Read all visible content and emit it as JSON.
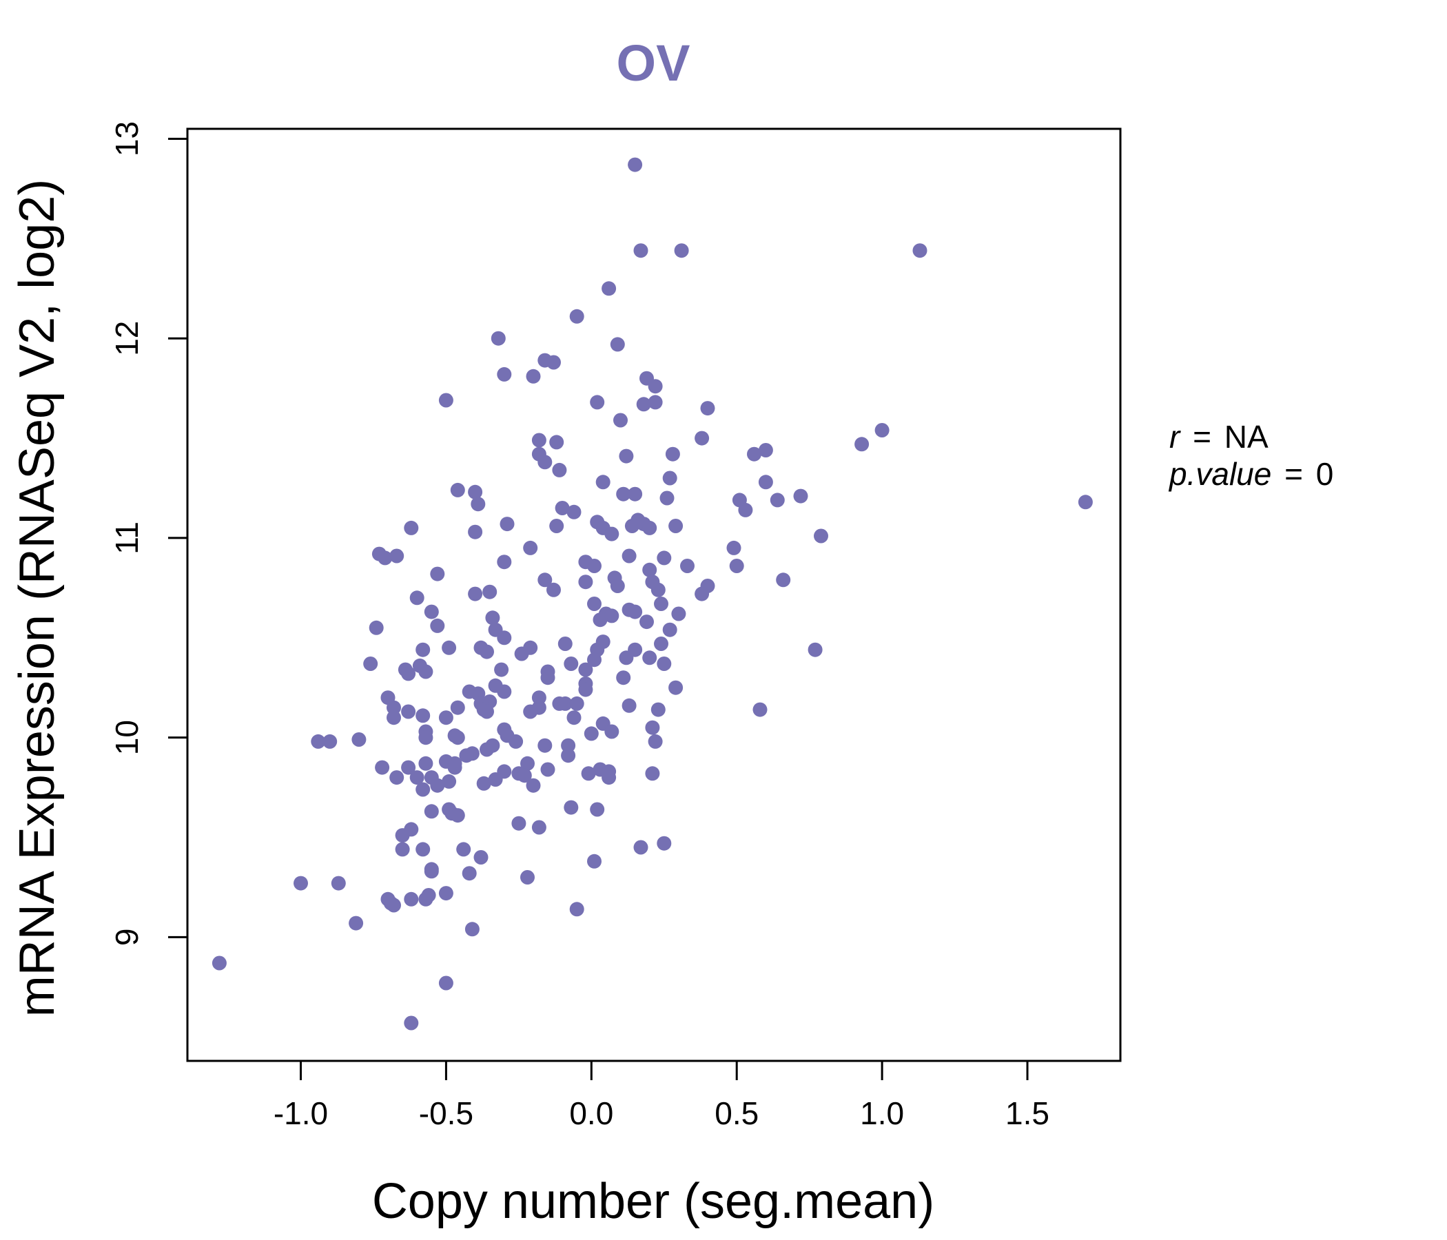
{
  "chart_data": {
    "type": "scatter",
    "title": "OV",
    "xlabel": "Copy number (seg.mean)",
    "ylabel": "mRNA Expression (RNASeq V2, log2)",
    "xlim": [
      -1.39,
      1.82
    ],
    "ylim": [
      8.38,
      13.05
    ],
    "x_ticks": [
      -1.0,
      -0.5,
      0.0,
      0.5,
      1.0,
      1.5
    ],
    "x_tick_labels": [
      "-1.0",
      "-0.5",
      "0.0",
      "0.5",
      "1.0",
      "1.5"
    ],
    "y_ticks": [
      9,
      10,
      11,
      12,
      13
    ],
    "y_tick_labels": [
      "9",
      "10",
      "11",
      "12",
      "13"
    ],
    "grid": false,
    "point_color": "#7570b3",
    "stats": {
      "r_label": "r",
      "r_value": "NA",
      "p_label": "p.value",
      "p_value": "0",
      "equals": "="
    },
    "points": [
      {
        "x": 0.15,
        "y": 12.87
      },
      {
        "x": 0.17,
        "y": 12.44
      },
      {
        "x": 0.31,
        "y": 12.44
      },
      {
        "x": 1.13,
        "y": 12.44
      },
      {
        "x": 0.06,
        "y": 12.25
      },
      {
        "x": -0.05,
        "y": 12.11
      },
      {
        "x": -0.32,
        "y": 12.0
      },
      {
        "x": 0.09,
        "y": 11.97
      },
      {
        "x": -0.16,
        "y": 11.89
      },
      {
        "x": -0.13,
        "y": 11.88
      },
      {
        "x": -0.3,
        "y": 11.82
      },
      {
        "x": -0.2,
        "y": 11.81
      },
      {
        "x": 0.19,
        "y": 11.8
      },
      {
        "x": 0.22,
        "y": 11.76
      },
      {
        "x": -0.5,
        "y": 11.69
      },
      {
        "x": 0.02,
        "y": 11.68
      },
      {
        "x": 0.18,
        "y": 11.67
      },
      {
        "x": 0.22,
        "y": 11.68
      },
      {
        "x": 0.4,
        "y": 11.65
      },
      {
        "x": 0.1,
        "y": 11.59
      },
      {
        "x": 1.0,
        "y": 11.54
      },
      {
        "x": 0.38,
        "y": 11.5
      },
      {
        "x": -0.18,
        "y": 11.49
      },
      {
        "x": -0.12,
        "y": 11.48
      },
      {
        "x": 0.93,
        "y": 11.47
      },
      {
        "x": 0.6,
        "y": 11.44
      },
      {
        "x": 0.56,
        "y": 11.42
      },
      {
        "x": -0.18,
        "y": 11.42
      },
      {
        "x": 0.12,
        "y": 11.41
      },
      {
        "x": 0.28,
        "y": 11.42
      },
      {
        "x": -0.16,
        "y": 11.38
      },
      {
        "x": -0.11,
        "y": 11.34
      },
      {
        "x": 0.27,
        "y": 11.3
      },
      {
        "x": 0.04,
        "y": 11.28
      },
      {
        "x": 0.6,
        "y": 11.28
      },
      {
        "x": -0.46,
        "y": 11.24
      },
      {
        "x": -0.4,
        "y": 11.23
      },
      {
        "x": 0.11,
        "y": 11.22
      },
      {
        "x": 0.15,
        "y": 11.22
      },
      {
        "x": 0.26,
        "y": 11.2
      },
      {
        "x": 0.72,
        "y": 11.21
      },
      {
        "x": 0.64,
        "y": 11.19
      },
      {
        "x": 0.51,
        "y": 11.19
      },
      {
        "x": 1.7,
        "y": 11.18
      },
      {
        "x": -0.39,
        "y": 11.17
      },
      {
        "x": -0.1,
        "y": 11.15
      },
      {
        "x": -0.06,
        "y": 11.13
      },
      {
        "x": 0.53,
        "y": 11.14
      },
      {
        "x": 0.02,
        "y": 11.08
      },
      {
        "x": 0.16,
        "y": 11.09
      },
      {
        "x": -0.29,
        "y": 11.07
      },
      {
        "x": -0.12,
        "y": 11.06
      },
      {
        "x": 0.14,
        "y": 11.06
      },
      {
        "x": 0.18,
        "y": 11.07
      },
      {
        "x": 0.2,
        "y": 11.05
      },
      {
        "x": 0.29,
        "y": 11.06
      },
      {
        "x": -0.62,
        "y": 11.05
      },
      {
        "x": 0.04,
        "y": 11.05
      },
      {
        "x": 0.07,
        "y": 11.02
      },
      {
        "x": -0.4,
        "y": 11.03
      },
      {
        "x": 0.79,
        "y": 11.01
      },
      {
        "x": -0.21,
        "y": 10.95
      },
      {
        "x": 0.49,
        "y": 10.95
      },
      {
        "x": -0.73,
        "y": 10.92
      },
      {
        "x": -0.67,
        "y": 10.91
      },
      {
        "x": -0.71,
        "y": 10.9
      },
      {
        "x": 0.13,
        "y": 10.91
      },
      {
        "x": 0.25,
        "y": 10.9
      },
      {
        "x": -0.3,
        "y": 10.88
      },
      {
        "x": -0.02,
        "y": 10.88
      },
      {
        "x": 0.01,
        "y": 10.86
      },
      {
        "x": 0.2,
        "y": 10.84
      },
      {
        "x": 0.33,
        "y": 10.86
      },
      {
        "x": 0.5,
        "y": 10.86
      },
      {
        "x": -0.53,
        "y": 10.82
      },
      {
        "x": 0.08,
        "y": 10.8
      },
      {
        "x": -0.16,
        "y": 10.79
      },
      {
        "x": -0.02,
        "y": 10.78
      },
      {
        "x": 0.09,
        "y": 10.76
      },
      {
        "x": 0.21,
        "y": 10.78
      },
      {
        "x": 0.4,
        "y": 10.76
      },
      {
        "x": 0.66,
        "y": 10.79
      },
      {
        "x": -0.13,
        "y": 10.74
      },
      {
        "x": -0.35,
        "y": 10.73
      },
      {
        "x": -0.4,
        "y": 10.72
      },
      {
        "x": 0.23,
        "y": 10.74
      },
      {
        "x": 0.38,
        "y": 10.72
      },
      {
        "x": -0.6,
        "y": 10.7
      },
      {
        "x": 0.01,
        "y": 10.67
      },
      {
        "x": 0.24,
        "y": 10.67
      },
      {
        "x": 0.13,
        "y": 10.64
      },
      {
        "x": 0.15,
        "y": 10.63
      },
      {
        "x": -0.55,
        "y": 10.63
      },
      {
        "x": 0.3,
        "y": 10.62
      },
      {
        "x": 0.05,
        "y": 10.62
      },
      {
        "x": 0.07,
        "y": 10.61
      },
      {
        "x": -0.34,
        "y": 10.6
      },
      {
        "x": 0.03,
        "y": 10.59
      },
      {
        "x": 0.19,
        "y": 10.58
      },
      {
        "x": -0.53,
        "y": 10.56
      },
      {
        "x": -0.74,
        "y": 10.55
      },
      {
        "x": -0.33,
        "y": 10.54
      },
      {
        "x": 0.27,
        "y": 10.54
      },
      {
        "x": -0.3,
        "y": 10.5
      },
      {
        "x": 0.04,
        "y": 10.48
      },
      {
        "x": -0.09,
        "y": 10.47
      },
      {
        "x": 0.24,
        "y": 10.47
      },
      {
        "x": -0.49,
        "y": 10.45
      },
      {
        "x": -0.38,
        "y": 10.45
      },
      {
        "x": -0.21,
        "y": 10.45
      },
      {
        "x": 0.02,
        "y": 10.44
      },
      {
        "x": 0.15,
        "y": 10.44
      },
      {
        "x": 0.77,
        "y": 10.44
      },
      {
        "x": -0.58,
        "y": 10.44
      },
      {
        "x": -0.36,
        "y": 10.43
      },
      {
        "x": -0.24,
        "y": 10.42
      },
      {
        "x": 0.12,
        "y": 10.4
      },
      {
        "x": 0.2,
        "y": 10.4
      },
      {
        "x": 0.01,
        "y": 10.39
      },
      {
        "x": -0.76,
        "y": 10.37
      },
      {
        "x": -0.07,
        "y": 10.37
      },
      {
        "x": 0.25,
        "y": 10.37
      },
      {
        "x": -0.59,
        "y": 10.36
      },
      {
        "x": -0.64,
        "y": 10.34
      },
      {
        "x": -0.31,
        "y": 10.34
      },
      {
        "x": -0.02,
        "y": 10.34
      },
      {
        "x": -0.57,
        "y": 10.33
      },
      {
        "x": -0.15,
        "y": 10.33
      },
      {
        "x": -0.63,
        "y": 10.32
      },
      {
        "x": -0.15,
        "y": 10.3
      },
      {
        "x": 0.11,
        "y": 10.3
      },
      {
        "x": -0.02,
        "y": 10.27
      },
      {
        "x": -0.33,
        "y": 10.26
      },
      {
        "x": 0.29,
        "y": 10.25
      },
      {
        "x": -0.42,
        "y": 10.23
      },
      {
        "x": -0.3,
        "y": 10.23
      },
      {
        "x": -0.02,
        "y": 10.24
      },
      {
        "x": -0.39,
        "y": 10.22
      },
      {
        "x": -0.7,
        "y": 10.2
      },
      {
        "x": -0.18,
        "y": 10.2
      },
      {
        "x": -0.35,
        "y": 10.18
      },
      {
        "x": -0.38,
        "y": 10.17
      },
      {
        "x": -0.11,
        "y": 10.17
      },
      {
        "x": -0.09,
        "y": 10.17
      },
      {
        "x": -0.05,
        "y": 10.17
      },
      {
        "x": 0.13,
        "y": 10.16
      },
      {
        "x": -0.68,
        "y": 10.15
      },
      {
        "x": -0.46,
        "y": 10.15
      },
      {
        "x": -0.37,
        "y": 10.14
      },
      {
        "x": -0.18,
        "y": 10.15
      },
      {
        "x": -0.36,
        "y": 10.13
      },
      {
        "x": -0.63,
        "y": 10.13
      },
      {
        "x": -0.21,
        "y": 10.13
      },
      {
        "x": 0.23,
        "y": 10.14
      },
      {
        "x": 0.58,
        "y": 10.14
      },
      {
        "x": -0.58,
        "y": 10.11
      },
      {
        "x": -0.68,
        "y": 10.1
      },
      {
        "x": -0.5,
        "y": 10.1
      },
      {
        "x": -0.06,
        "y": 10.1
      },
      {
        "x": 0.04,
        "y": 10.07
      },
      {
        "x": 0.21,
        "y": 10.05
      },
      {
        "x": -0.3,
        "y": 10.04
      },
      {
        "x": 0.07,
        "y": 10.03
      },
      {
        "x": -0.57,
        "y": 10.03
      },
      {
        "x": 0.0,
        "y": 10.02
      },
      {
        "x": -0.47,
        "y": 10.01
      },
      {
        "x": -0.29,
        "y": 10.01
      },
      {
        "x": -0.57,
        "y": 10.0
      },
      {
        "x": -0.46,
        "y": 10.0
      },
      {
        "x": -0.8,
        "y": 9.99
      },
      {
        "x": -0.9,
        "y": 9.98
      },
      {
        "x": -0.94,
        "y": 9.98
      },
      {
        "x": -0.26,
        "y": 9.98
      },
      {
        "x": 0.22,
        "y": 9.98
      },
      {
        "x": -0.34,
        "y": 9.96
      },
      {
        "x": -0.16,
        "y": 9.96
      },
      {
        "x": -0.08,
        "y": 9.96
      },
      {
        "x": -0.36,
        "y": 9.94
      },
      {
        "x": -0.41,
        "y": 9.92
      },
      {
        "x": -0.43,
        "y": 9.91
      },
      {
        "x": -0.08,
        "y": 9.91
      },
      {
        "x": -0.5,
        "y": 9.88
      },
      {
        "x": -0.57,
        "y": 9.87
      },
      {
        "x": -0.22,
        "y": 9.87
      },
      {
        "x": -0.47,
        "y": 9.87
      },
      {
        "x": -0.72,
        "y": 9.85
      },
      {
        "x": -0.63,
        "y": 9.85
      },
      {
        "x": -0.47,
        "y": 9.85
      },
      {
        "x": -0.15,
        "y": 9.84
      },
      {
        "x": 0.03,
        "y": 9.84
      },
      {
        "x": -0.3,
        "y": 9.83
      },
      {
        "x": 0.06,
        "y": 9.83
      },
      {
        "x": -0.25,
        "y": 9.82
      },
      {
        "x": -0.01,
        "y": 9.82
      },
      {
        "x": 0.21,
        "y": 9.82
      },
      {
        "x": -0.6,
        "y": 9.8
      },
      {
        "x": -0.67,
        "y": 9.8
      },
      {
        "x": -0.55,
        "y": 9.8
      },
      {
        "x": -0.33,
        "y": 9.79
      },
      {
        "x": -0.23,
        "y": 9.81
      },
      {
        "x": 0.06,
        "y": 9.8
      },
      {
        "x": -0.49,
        "y": 9.78
      },
      {
        "x": -0.37,
        "y": 9.77
      },
      {
        "x": -0.2,
        "y": 9.76
      },
      {
        "x": -0.53,
        "y": 9.76
      },
      {
        "x": -0.58,
        "y": 9.74
      },
      {
        "x": -0.49,
        "y": 9.64
      },
      {
        "x": -0.07,
        "y": 9.65
      },
      {
        "x": 0.02,
        "y": 9.64
      },
      {
        "x": -0.55,
        "y": 9.63
      },
      {
        "x": -0.48,
        "y": 9.62
      },
      {
        "x": -0.46,
        "y": 9.61
      },
      {
        "x": -0.25,
        "y": 9.57
      },
      {
        "x": -0.18,
        "y": 9.55
      },
      {
        "x": -0.62,
        "y": 9.54
      },
      {
        "x": -0.65,
        "y": 9.51
      },
      {
        "x": 0.25,
        "y": 9.47
      },
      {
        "x": 0.17,
        "y": 9.45
      },
      {
        "x": -0.44,
        "y": 9.44
      },
      {
        "x": -0.58,
        "y": 9.44
      },
      {
        "x": -0.65,
        "y": 9.44
      },
      {
        "x": -0.38,
        "y": 9.4
      },
      {
        "x": 0.01,
        "y": 9.38
      },
      {
        "x": -0.55,
        "y": 9.34
      },
      {
        "x": -0.55,
        "y": 9.33
      },
      {
        "x": -0.42,
        "y": 9.32
      },
      {
        "x": -0.22,
        "y": 9.3
      },
      {
        "x": -1.0,
        "y": 9.27
      },
      {
        "x": -0.87,
        "y": 9.27
      },
      {
        "x": -0.5,
        "y": 9.22
      },
      {
        "x": -0.56,
        "y": 9.21
      },
      {
        "x": -0.57,
        "y": 9.19
      },
      {
        "x": -0.7,
        "y": 9.19
      },
      {
        "x": -0.62,
        "y": 9.19
      },
      {
        "x": -0.69,
        "y": 9.17
      },
      {
        "x": -0.68,
        "y": 9.16
      },
      {
        "x": -0.05,
        "y": 9.14
      },
      {
        "x": -0.81,
        "y": 9.07
      },
      {
        "x": -0.41,
        "y": 9.04
      },
      {
        "x": -1.28,
        "y": 8.87
      },
      {
        "x": -0.5,
        "y": 8.77
      },
      {
        "x": -0.62,
        "y": 8.57
      }
    ]
  }
}
